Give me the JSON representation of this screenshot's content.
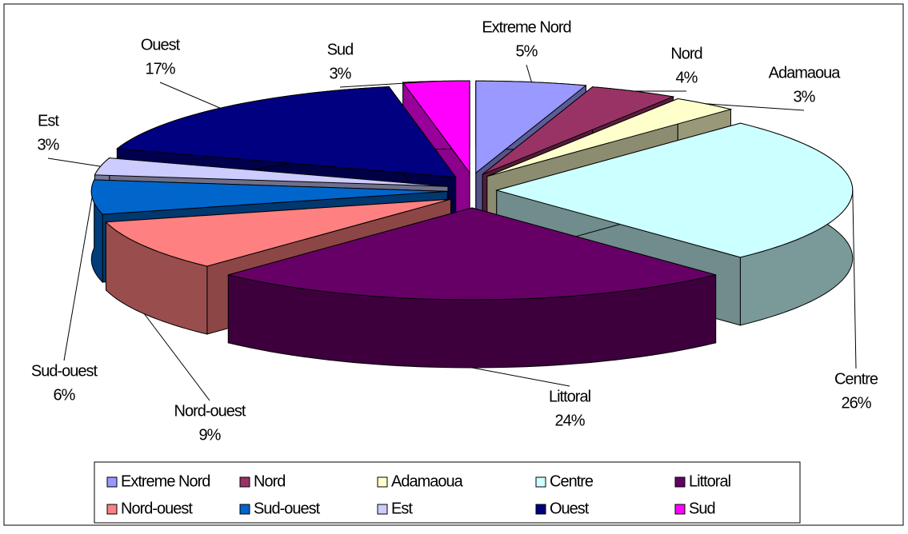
{
  "chart_data": {
    "type": "pie3d",
    "categories": [
      "Extreme Nord",
      "Nord",
      "Adamaoua",
      "Centre",
      "Littoral",
      "Nord-ouest",
      "Sud-ouest",
      "Est",
      "Ouest",
      "Sud"
    ],
    "values": [
      5,
      4,
      3,
      26,
      24,
      9,
      6,
      3,
      17,
      3
    ],
    "value_labels": [
      "5%",
      "4%",
      "3%",
      "26%",
      "24%",
      "9%",
      "6%",
      "3%",
      "17%",
      "3%"
    ],
    "colors": [
      "#9999ff",
      "#993366",
      "#ffffcc",
      "#ccffff",
      "#660066",
      "#ff8080",
      "#0066cc",
      "#ccccff",
      "#000080",
      "#ff00ff"
    ],
    "legend": "bottom"
  }
}
